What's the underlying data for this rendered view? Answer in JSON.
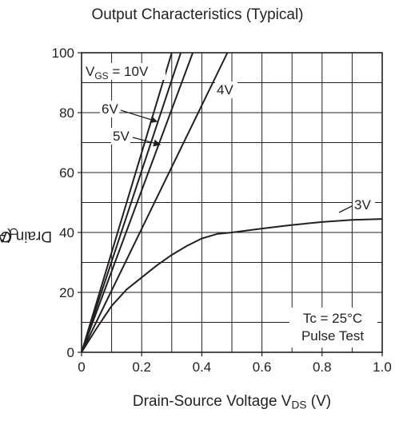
{
  "chart_data": {
    "type": "line",
    "title": "Output Characteristics  (Typical)",
    "xlabel": {
      "text": "Drain-Source Voltage  V",
      "sub": "DS",
      "unit": " (V)"
    },
    "ylabel": {
      "text": "Drain Current  I",
      "sub": "D",
      "unit": " (A)"
    },
    "xlim": [
      0,
      1.0
    ],
    "ylim": [
      0,
      100
    ],
    "x_ticks": [
      "0",
      "0.2",
      "0.4",
      "0.6",
      "0.8",
      "1.0"
    ],
    "y_ticks": [
      "0",
      "20",
      "40",
      "60",
      "80",
      "100"
    ],
    "grid": true,
    "series": [
      {
        "name": "V_GS = 10V",
        "x": [
          0,
          0.3
        ],
        "y": [
          0,
          100
        ]
      },
      {
        "name": "6V",
        "x": [
          0,
          0.33
        ],
        "y": [
          0,
          100
        ]
      },
      {
        "name": "5V",
        "x": [
          0,
          0.37
        ],
        "y": [
          0,
          100
        ]
      },
      {
        "name": "4V",
        "x": [
          0,
          0.485
        ],
        "y": [
          0,
          100
        ]
      },
      {
        "name": "3V",
        "x": [
          0,
          0.05,
          0.1,
          0.15,
          0.2,
          0.25,
          0.3,
          0.35,
          0.4,
          0.45,
          0.5,
          0.6,
          0.7,
          0.8,
          0.9,
          1.0
        ],
        "y": [
          0,
          8,
          15.5,
          21,
          25,
          29,
          32.5,
          35.5,
          38,
          39.5,
          40,
          41.3,
          42.5,
          43.5,
          44.2,
          44.5
        ]
      }
    ],
    "series_labels": [
      {
        "text": "V",
        "sub": "GS",
        "rest": " = 10V"
      },
      {
        "text": "6V"
      },
      {
        "text": "5V"
      },
      {
        "text": "4V"
      },
      {
        "text": "3V"
      }
    ],
    "annotation": [
      "Tc = 25°C",
      "Pulse Test"
    ]
  }
}
